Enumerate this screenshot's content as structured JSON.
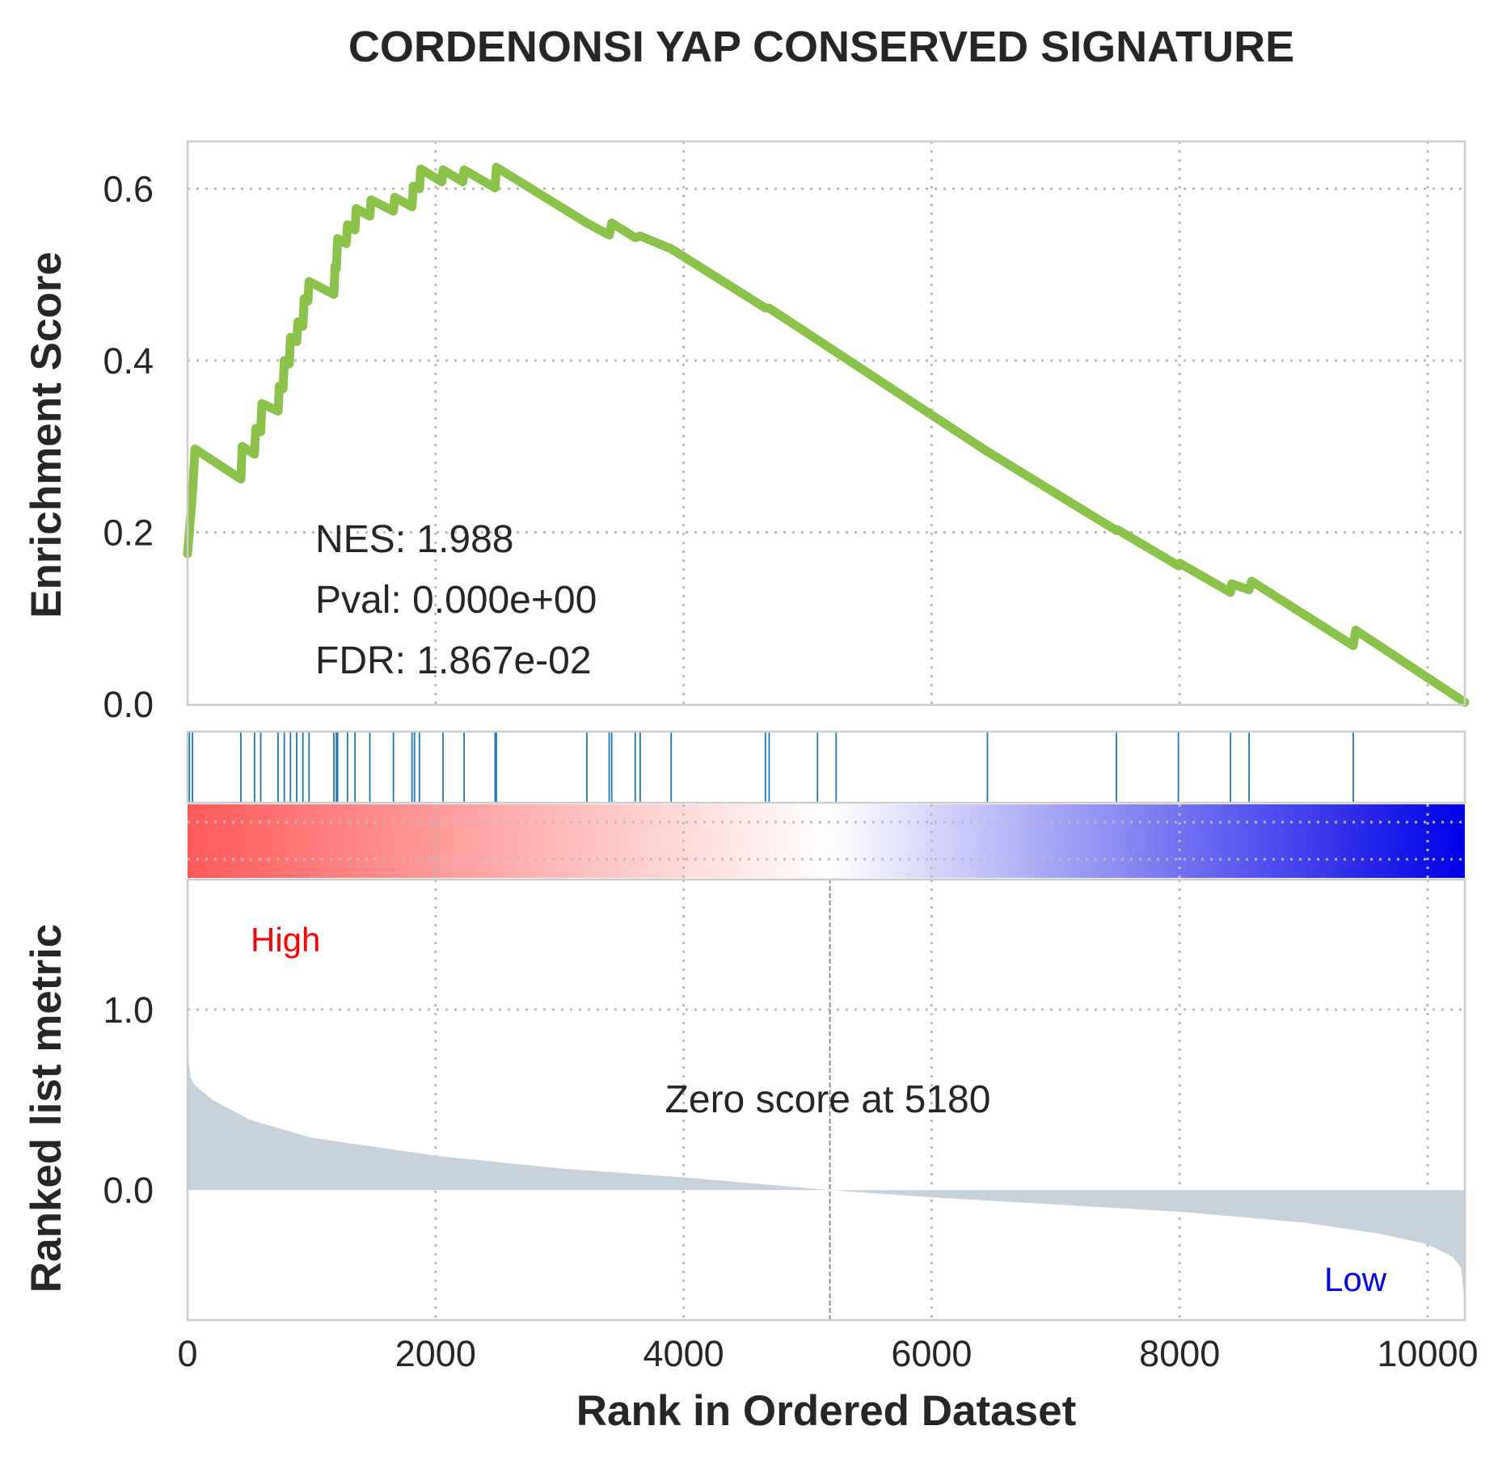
{
  "chart_data": {
    "type": "line",
    "title": "CORDENONSI YAP CONSERVED SIGNATURE",
    "xlabel": "Rank in Ordered Dataset",
    "xlim": [
      0,
      10300
    ],
    "x_ticks": [
      "0",
      "2000",
      "4000",
      "6000",
      "8000",
      "10000"
    ],
    "es_panel": {
      "ylabel": "Enrichment Score",
      "ylim": [
        -0.001,
        0.655
      ],
      "y_ticks": [
        "0.0",
        "0.2",
        "0.4",
        "0.6"
      ],
      "line_color": "#8bc34a",
      "points": [
        [
          0,
          0.175
        ],
        [
          40,
          0.245
        ],
        [
          60,
          0.297
        ],
        [
          430,
          0.262
        ],
        [
          440,
          0.3
        ],
        [
          540,
          0.291
        ],
        [
          550,
          0.321
        ],
        [
          590,
          0.317
        ],
        [
          600,
          0.35
        ],
        [
          730,
          0.341
        ],
        [
          740,
          0.37
        ],
        [
          770,
          0.367
        ],
        [
          780,
          0.4
        ],
        [
          820,
          0.396
        ],
        [
          830,
          0.427
        ],
        [
          880,
          0.422
        ],
        [
          890,
          0.445
        ],
        [
          930,
          0.44
        ],
        [
          940,
          0.472
        ],
        [
          970,
          0.469
        ],
        [
          980,
          0.492
        ],
        [
          1180,
          0.477
        ],
        [
          1190,
          0.51
        ],
        [
          1200,
          0.507
        ],
        [
          1210,
          0.542
        ],
        [
          1280,
          0.536
        ],
        [
          1290,
          0.558
        ],
        [
          1350,
          0.552
        ],
        [
          1360,
          0.577
        ],
        [
          1470,
          0.568
        ],
        [
          1480,
          0.587
        ],
        [
          1660,
          0.574
        ],
        [
          1670,
          0.59
        ],
        [
          1810,
          0.579
        ],
        [
          1820,
          0.603
        ],
        [
          1870,
          0.6
        ],
        [
          1880,
          0.623
        ],
        [
          2050,
          0.608
        ],
        [
          2060,
          0.622
        ],
        [
          2220,
          0.608
        ],
        [
          2230,
          0.622
        ],
        [
          2480,
          0.601
        ],
        [
          2490,
          0.625
        ],
        [
          3220,
          0.56
        ],
        [
          3400,
          0.546
        ],
        [
          3420,
          0.56
        ],
        [
          3610,
          0.543
        ],
        [
          3650,
          0.545
        ],
        [
          3900,
          0.53
        ],
        [
          4660,
          0.461
        ],
        [
          4690,
          0.461
        ],
        [
          6450,
          0.294
        ],
        [
          7490,
          0.202
        ],
        [
          7500,
          0.203
        ],
        [
          7990,
          0.161
        ],
        [
          8000,
          0.164
        ],
        [
          8410,
          0.13
        ],
        [
          8420,
          0.14
        ],
        [
          8560,
          0.133
        ],
        [
          8580,
          0.143
        ],
        [
          9400,
          0.068
        ],
        [
          9420,
          0.086
        ],
        [
          10300,
          0.002
        ]
      ],
      "annotations": [
        "NES: 1.988",
        "Pval: 0.000e+00",
        "FDR: 1.867e-02"
      ]
    },
    "hits": {
      "color": "#1f77b4",
      "positions": [
        15,
        40,
        430,
        540,
        590,
        730,
        780,
        830,
        880,
        930,
        980,
        1180,
        1200,
        1210,
        1290,
        1350,
        1470,
        1660,
        1810,
        1830,
        1870,
        2060,
        2230,
        2480,
        2490,
        3220,
        3400,
        3420,
        3610,
        3650,
        3900,
        4660,
        4690,
        5080,
        5230,
        6450,
        7490,
        7990,
        8410,
        8560,
        9400
      ]
    },
    "heatmap": {
      "colors": [
        "#ff5a5a",
        "#ffffff",
        "#0000e6"
      ],
      "zero_fraction": 0.503
    },
    "metric_panel": {
      "ylabel": "Ranked list metric",
      "ylim": [
        -0.72,
        1.72
      ],
      "y_ticks": [
        "0.0",
        "1.0"
      ],
      "fill_color": "#c8d2da",
      "points": [
        [
          0,
          1.7
        ],
        [
          3,
          1.05
        ],
        [
          10,
          0.72
        ],
        [
          25,
          0.62
        ],
        [
          60,
          0.58
        ],
        [
          200,
          0.5
        ],
        [
          500,
          0.39
        ],
        [
          1000,
          0.29
        ],
        [
          2000,
          0.19
        ],
        [
          3000,
          0.12
        ],
        [
          4000,
          0.07
        ],
        [
          5180,
          0.0
        ],
        [
          6000,
          -0.04
        ],
        [
          7000,
          -0.08
        ],
        [
          8000,
          -0.12
        ],
        [
          9000,
          -0.18
        ],
        [
          9600,
          -0.24
        ],
        [
          10000,
          -0.3
        ],
        [
          10200,
          -0.37
        ],
        [
          10270,
          -0.43
        ],
        [
          10300,
          -0.65
        ]
      ],
      "zero_label": "Zero score at 5180",
      "zero_rank": 5180,
      "high_label": "High",
      "high_color": "#ff0000",
      "low_label": "Low",
      "low_color": "#0000ff"
    }
  }
}
